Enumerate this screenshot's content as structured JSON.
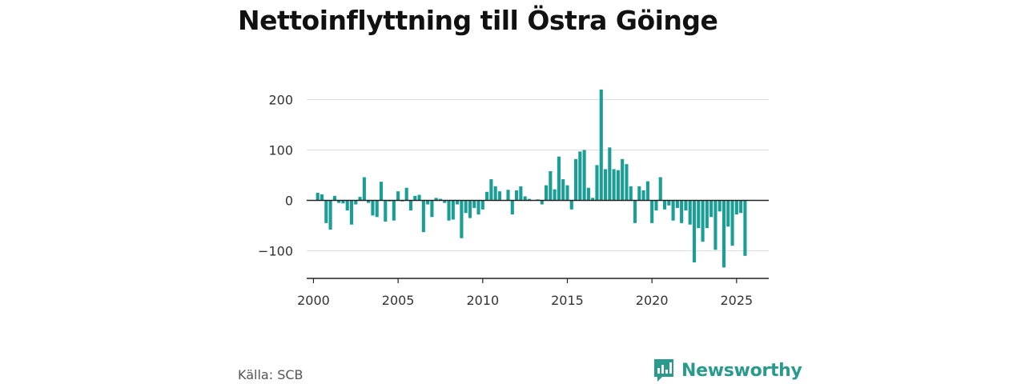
{
  "title": "Nettoinflyttning till Östra Göinge",
  "source": "Källa: SCB",
  "brand": {
    "name": "Newsworthy",
    "icon": "bar-chart-speech-bubble-icon",
    "color": "#2a9a8c"
  },
  "chart_data": {
    "type": "bar",
    "title": "Nettoinflyttning till Östra Göinge",
    "xlabel": "",
    "ylabel": "",
    "bar_color": "#1a9e96",
    "zero_line_color": "#222222",
    "grid": true,
    "ylim": [
      -150,
      230
    ],
    "xlim": [
      1999.6,
      2026.9
    ],
    "yticks": [
      200,
      100,
      0,
      -100
    ],
    "ytick_labels": [
      "200",
      "100",
      "0",
      "−100"
    ],
    "xticks": [
      2000,
      2005,
      2010,
      2015,
      2020,
      2025
    ],
    "xtick_labels": [
      "2000",
      "2005",
      "2010",
      "2015",
      "2020",
      "2025"
    ],
    "x": [
      "2000-Q1",
      "2000-Q2",
      "2000-Q3",
      "2000-Q4",
      "2001-Q1",
      "2001-Q2",
      "2001-Q3",
      "2001-Q4",
      "2002-Q1",
      "2002-Q2",
      "2002-Q3",
      "2002-Q4",
      "2003-Q1",
      "2003-Q2",
      "2003-Q3",
      "2003-Q4",
      "2004-Q1",
      "2004-Q2",
      "2004-Q3",
      "2004-Q4",
      "2005-Q1",
      "2005-Q2",
      "2005-Q3",
      "2005-Q4",
      "2006-Q1",
      "2006-Q2",
      "2006-Q3",
      "2006-Q4",
      "2007-Q1",
      "2007-Q2",
      "2007-Q3",
      "2007-Q4",
      "2008-Q1",
      "2008-Q2",
      "2008-Q3",
      "2008-Q4",
      "2009-Q1",
      "2009-Q2",
      "2009-Q3",
      "2009-Q4",
      "2010-Q1",
      "2010-Q2",
      "2010-Q3",
      "2010-Q4",
      "2011-Q1",
      "2011-Q2",
      "2011-Q3",
      "2011-Q4",
      "2012-Q1",
      "2012-Q2",
      "2012-Q3",
      "2012-Q4",
      "2013-Q1",
      "2013-Q2",
      "2013-Q3",
      "2013-Q4",
      "2014-Q1",
      "2014-Q2",
      "2014-Q3",
      "2014-Q4",
      "2015-Q1",
      "2015-Q2",
      "2015-Q3",
      "2015-Q4",
      "2016-Q1",
      "2016-Q2",
      "2016-Q3",
      "2016-Q4",
      "2017-Q1",
      "2017-Q2",
      "2017-Q3",
      "2017-Q4",
      "2018-Q1",
      "2018-Q2",
      "2018-Q3",
      "2018-Q4",
      "2019-Q1",
      "2019-Q2",
      "2019-Q3",
      "2019-Q4",
      "2020-Q1",
      "2020-Q2",
      "2020-Q3",
      "2020-Q4",
      "2021-Q1",
      "2021-Q2",
      "2021-Q3",
      "2021-Q4",
      "2022-Q1",
      "2022-Q2",
      "2022-Q3",
      "2022-Q4",
      "2023-Q1",
      "2023-Q2",
      "2023-Q3",
      "2023-Q4",
      "2024-Q1",
      "2024-Q2",
      "2024-Q3",
      "2024-Q4",
      "2025-Q1",
      "2025-Q2",
      "2025-Q3",
      "2025-Q4"
    ],
    "values": [
      0,
      15,
      12,
      -45,
      -58,
      9,
      -5,
      -6,
      -20,
      -48,
      -8,
      7,
      46,
      -5,
      -30,
      -33,
      37,
      -42,
      -2,
      -40,
      18,
      -2,
      25,
      -20,
      9,
      11,
      -63,
      -8,
      -33,
      5,
      3,
      -5,
      -40,
      -38,
      -8,
      -75,
      -25,
      -35,
      -15,
      -28,
      -18,
      17,
      42,
      28,
      18,
      0,
      21,
      -28,
      20,
      28,
      8,
      3,
      0,
      2,
      -8,
      30,
      58,
      22,
      87,
      42,
      30,
      -18,
      82,
      97,
      100,
      25,
      5,
      70,
      220,
      62,
      105,
      62,
      60,
      82,
      72,
      28,
      -45,
      28,
      20,
      38,
      -45,
      -20,
      46,
      -18,
      -10,
      -40,
      -15,
      -45,
      -20,
      -48,
      -123,
      -55,
      -82,
      -55,
      -33,
      -98,
      -22,
      -133,
      -52,
      -90,
      -28,
      -25,
      -110,
      0
    ]
  }
}
